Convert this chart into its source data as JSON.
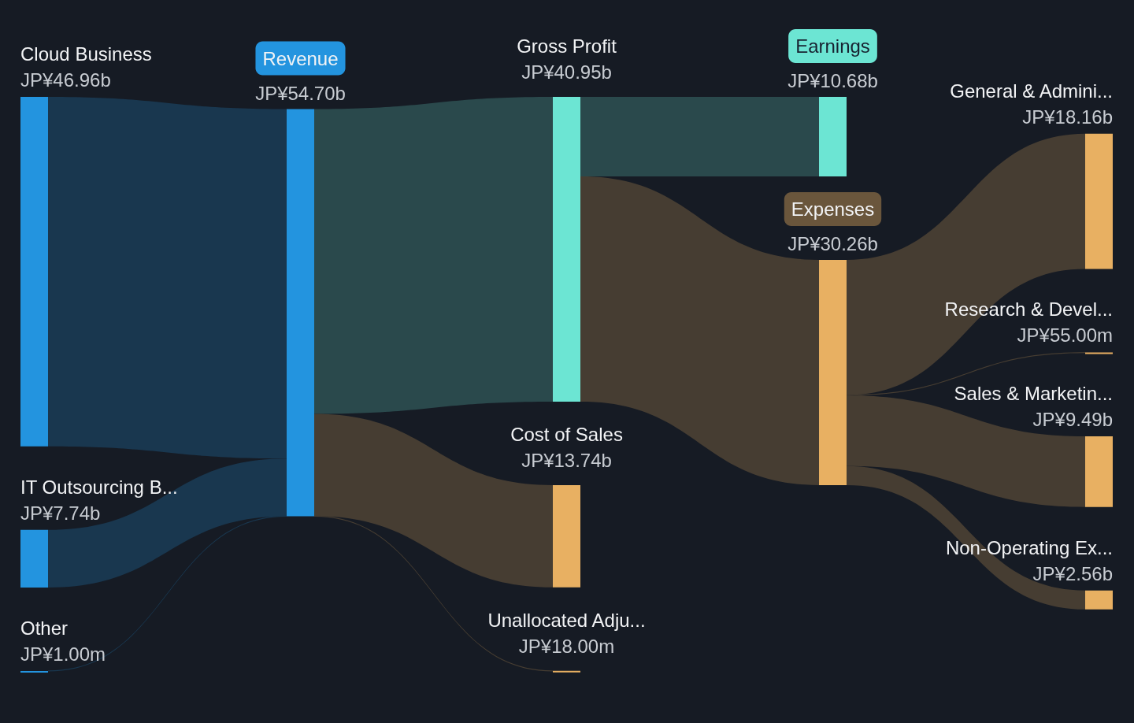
{
  "chart_data": {
    "type": "other",
    "categories": [
      "Cloud Business",
      "IT Outsourcing B...",
      "Other",
      "Revenue",
      "Gross Profit",
      "Cost of Sales",
      "Unallocated Adju...",
      "Earnings",
      "Expenses",
      "General & Admini...",
      "Research & Devel...",
      "Sales & Marketin...",
      "Non-Operating Ex..."
    ],
    "series": [
      {
        "values": [
          46960000000,
          7740000000,
          1000000,
          null,
          null,
          null,
          null,
          null,
          null,
          null,
          null,
          null,
          null
        ],
        "value_labels": [
          "JP¥46.96b",
          "JP¥7.74b",
          "JP¥1.00m",
          null,
          null,
          null,
          null,
          null,
          null,
          null,
          null,
          null,
          null
        ]
      },
      {
        "values": [
          null,
          null,
          null,
          54700000000,
          null,
          null,
          null,
          null,
          null,
          null,
          null,
          null,
          null
        ],
        "value_labels": [
          null,
          null,
          null,
          "JP¥54.70b",
          null,
          null,
          null,
          null,
          null,
          null,
          null,
          null,
          null
        ]
      },
      {
        "values": [
          null,
          null,
          null,
          null,
          40950000000,
          13740000000,
          18000000,
          null,
          null,
          null,
          null,
          null,
          null
        ],
        "value_labels": [
          null,
          null,
          null,
          null,
          "JP¥40.95b",
          "JP¥13.74b",
          "JP¥18.00m",
          null,
          null,
          null,
          null,
          null,
          null
        ]
      },
      {
        "values": [
          null,
          null,
          null,
          null,
          null,
          null,
          null,
          10680000000,
          30260000000,
          null,
          null,
          null,
          null
        ],
        "value_labels": [
          null,
          null,
          null,
          null,
          null,
          null,
          null,
          "JP¥10.68b",
          "JP¥30.26b",
          null,
          null,
          null,
          null
        ]
      },
      {
        "values": [
          null,
          null,
          null,
          null,
          null,
          null,
          null,
          null,
          null,
          18160000000,
          55000000,
          9490000000,
          2560000000
        ],
        "value_labels": [
          null,
          null,
          null,
          null,
          null,
          null,
          null,
          null,
          null,
          "JP¥18.16b",
          "JP¥55.00m",
          "JP¥9.49b",
          "JP¥2.56b"
        ]
      }
    ],
    "colors": [
      "#2394df",
      "#2394df",
      "#2394df",
      "#2394df",
      "#6ce5d3",
      "#e8b062",
      "#e8b062",
      "#6ce5d3",
      "#e8b062",
      "#e8b062",
      "#e8b062",
      "#e8b062",
      "#e8b062"
    ]
  }
}
